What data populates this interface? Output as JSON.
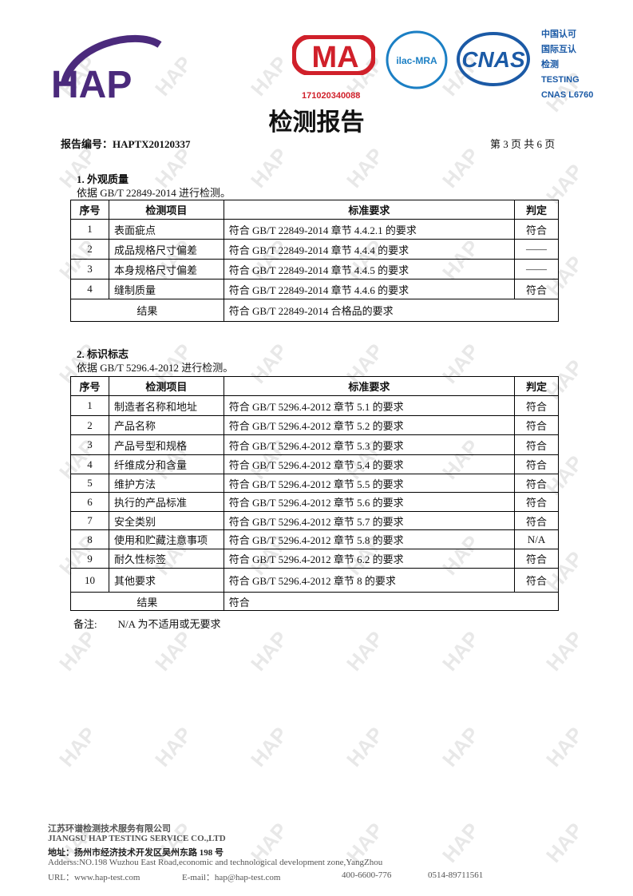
{
  "header": {
    "logo": "HAP",
    "cma_logo": "MA",
    "ilac_logo": "ilac-MRA",
    "cnas_logo": "CNAS",
    "cert_no": "171020340088",
    "accreditation": [
      "中国认可",
      "国际互认",
      "检测",
      "TESTING",
      "CNAS L6760"
    ]
  },
  "title": "检测报告",
  "report_no": {
    "label": "报告编号：",
    "value": "HAPTX20120337"
  },
  "page_info": "第 3 页 共 6 页",
  "watermark": "HAP",
  "sections": [
    {
      "heading": "1. 外观质量",
      "basis": "依据  GB/T 22849-2014 进行检测。",
      "columns": [
        "序号",
        "检测项目",
        "标准要求",
        "判定"
      ],
      "rows": [
        [
          "1",
          "表面疵点",
          "符合  GB/T 22849-2014 章节 4.4.2.1 的要求",
          "符合"
        ],
        [
          "2",
          "成品规格尺寸偏差",
          "符合  GB/T 22849-2014 章节 4.4.4 的要求",
          "——"
        ],
        [
          "3",
          "本身规格尺寸偏差",
          "符合  GB/T 22849-2014 章节 4.4.5 的要求",
          "——"
        ],
        [
          "4",
          "缝制质量",
          "符合  GB/T 22849-2014 章节 4.4.6 的要求",
          "符合"
        ]
      ],
      "result": [
        "结果",
        "符合  GB/T 22849-2014 合格品的要求"
      ]
    },
    {
      "heading": "2. 标识标志",
      "basis": "依据  GB/T 5296.4-2012 进行检测。",
      "columns": [
        "序号",
        "检测项目",
        "标准要求",
        "判定"
      ],
      "rows": [
        [
          "1",
          "制造者名称和地址",
          "符合  GB/T 5296.4-2012  章节 5.1 的要求",
          "符合"
        ],
        [
          "2",
          "产品名称",
          "符合  GB/T 5296.4-2012  章节 5.2 的要求",
          "符合"
        ],
        [
          "3",
          "产品号型和规格",
          "符合  GB/T 5296.4-2012  章节 5.3 的要求",
          "符合"
        ],
        [
          "4",
          "纤维成分和含量",
          "符合  GB/T 5296.4-2012  章节 5.4 的要求",
          "符合"
        ],
        [
          "5",
          "维护方法",
          "符合  GB/T 5296.4-2012  章节 5.5 的要求",
          "符合"
        ],
        [
          "6",
          "执行的产品标准",
          "符合  GB/T 5296.4-2012  章节 5.6 的要求",
          "符合"
        ],
        [
          "7",
          "安全类别",
          "符合  GB/T 5296.4-2012  章节 5.7 的要求",
          "符合"
        ],
        [
          "8",
          "使用和贮藏注意事项",
          "符合  GB/T 5296.4-2012  章节 5.8 的要求",
          "N/A"
        ],
        [
          "9",
          "耐久性标签",
          "符合  GB/T 5296.4-2012  章节 6.2 的要求",
          "符合"
        ],
        [
          "10",
          "其他要求",
          "符合  GB/T 5296.4-2012  章节 8 的要求",
          "符合"
        ]
      ],
      "result": [
        "结果",
        "符合"
      ]
    }
  ],
  "note": {
    "label": "备注:",
    "text": "N/A 为不适用或无要求"
  },
  "footer": {
    "company_cn": "江苏环谱检测技术服务有限公司",
    "company_en": "JIANGSU HAP TESTING SERVICE CO.,LTD",
    "address_cn": "地址：扬州市经济技术开发区吴州东路 198 号",
    "address_en": "Adderss:NO.198 Wuzhou East Road,economic and technological development zone,YangZhou",
    "url": "URL：www.hap-test.com",
    "email": "E-mail：hap@hap-test.com",
    "phone": "400-6600-776",
    "fax": "0514-89711561"
  }
}
